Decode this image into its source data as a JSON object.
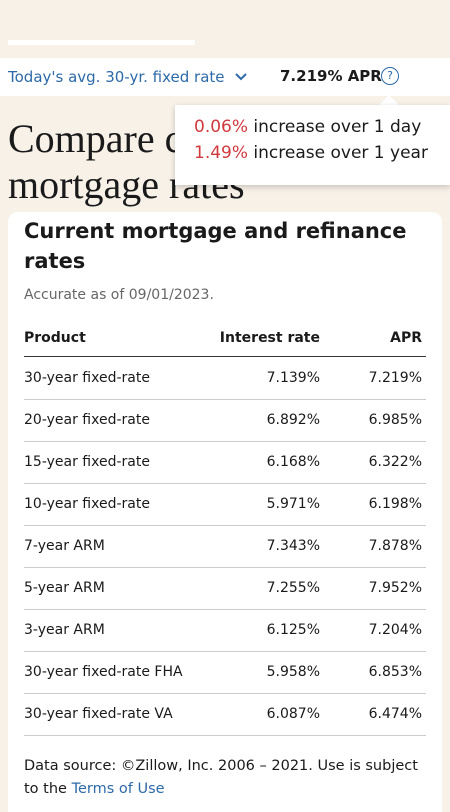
{
  "header": {
    "rate_label": "Today's avg. 30-yr. fixed rate",
    "rate_value": "7.219% APR"
  },
  "tooltip": {
    "lines": [
      {
        "change": "0.06%",
        "text": "increase over 1 day"
      },
      {
        "change": "1.49%",
        "text": "increase over 1 year"
      }
    ]
  },
  "heading": "Compare current mortgage rates",
  "card": {
    "title": "Current mortgage and refinance rates",
    "accuracy": "Accurate as of 09/01/2023.",
    "table": {
      "columns": [
        "Product",
        "Interest rate",
        "APR"
      ],
      "rows": [
        [
          "30-year fixed-rate",
          "7.139%",
          "7.219%"
        ],
        [
          "20-year fixed-rate",
          "6.892%",
          "6.985%"
        ],
        [
          "15-year fixed-rate",
          "6.168%",
          "6.322%"
        ],
        [
          "10-year fixed-rate",
          "5.971%",
          "6.198%"
        ],
        [
          "7-year ARM",
          "7.343%",
          "7.878%"
        ],
        [
          "5-year ARM",
          "7.255%",
          "7.952%"
        ],
        [
          "3-year ARM",
          "6.125%",
          "7.204%"
        ],
        [
          "30-year fixed-rate FHA",
          "5.958%",
          "6.853%"
        ],
        [
          "30-year fixed-rate VA",
          "6.087%",
          "6.474%"
        ]
      ]
    },
    "footer": {
      "text": "Data source: ©Zillow, Inc. 2006 – 2021. Use is subject to the",
      "link": "Terms of Use"
    }
  }
}
